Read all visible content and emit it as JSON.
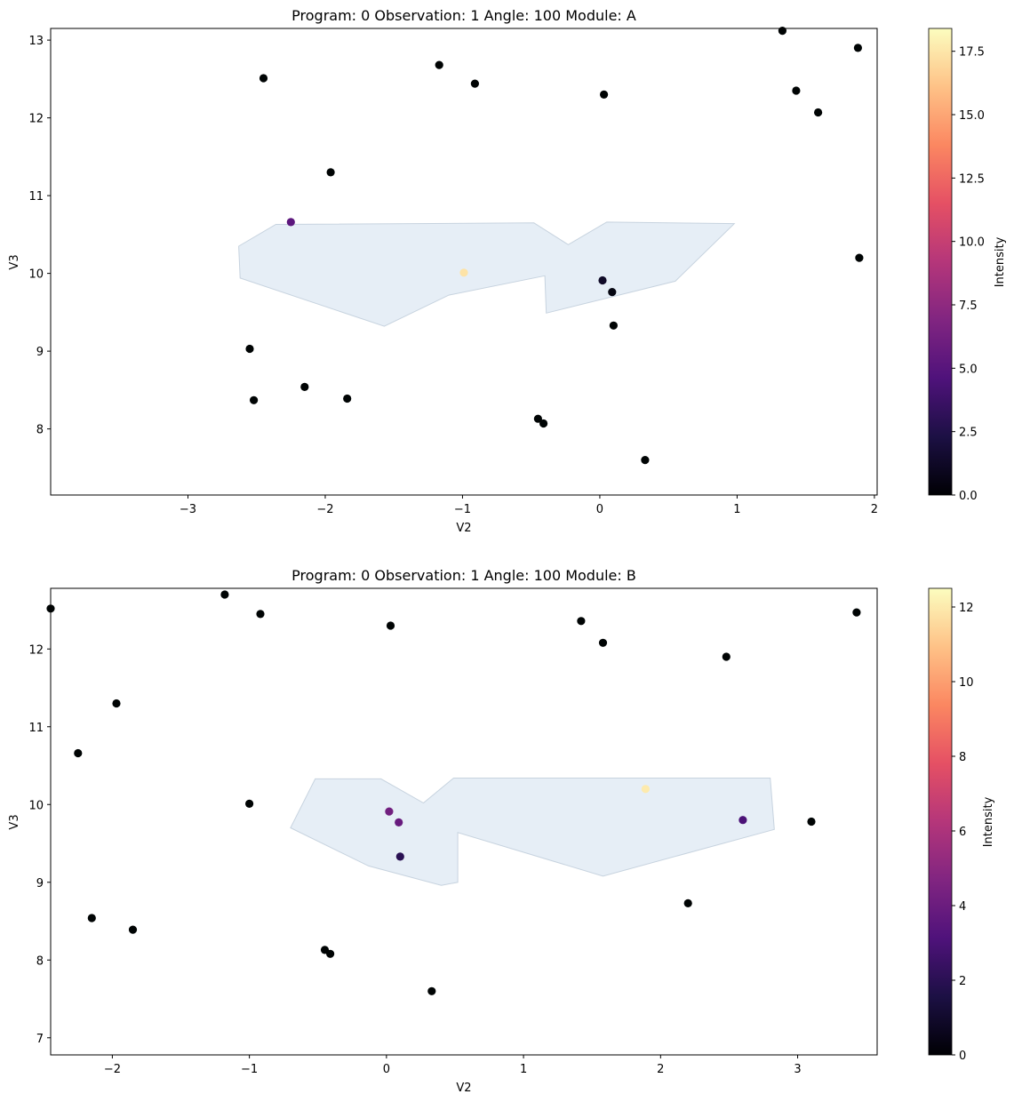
{
  "chart_data": [
    {
      "type": "scatter",
      "title": "Program: 0 Observation: 1 Angle: 100 Module: A",
      "xlabel": "V2",
      "ylabel": "V3",
      "xlim": [
        -4.0,
        2.02
      ],
      "ylim": [
        7.15,
        13.15
      ],
      "xticks": [
        -3,
        -2,
        -1,
        0,
        1,
        2
      ],
      "yticks": [
        8,
        9,
        10,
        11,
        12,
        13
      ],
      "grid": false,
      "colorbar": {
        "label": "Intensity",
        "colormap": "magma",
        "range": [
          0,
          18.4
        ],
        "ticks": [
          "0.0",
          "2.5",
          "5.0",
          "7.5",
          "10.0",
          "12.5",
          "15.0",
          "17.5"
        ]
      },
      "footprint_color": "#e6eef6",
      "footprint": [
        [
          -2.63,
          10.35
        ],
        [
          -2.36,
          10.63
        ],
        [
          -0.48,
          10.65
        ],
        [
          -0.23,
          10.37
        ],
        [
          0.05,
          10.66
        ],
        [
          0.98,
          10.64
        ],
        [
          0.55,
          9.9
        ],
        [
          -0.39,
          9.49
        ],
        [
          -0.4,
          9.97
        ],
        [
          -1.1,
          9.72
        ],
        [
          -1.57,
          9.32
        ],
        [
          -2.62,
          9.94
        ]
      ],
      "points": [
        {
          "x": 1.33,
          "y": 13.12,
          "value": 0
        },
        {
          "x": 1.88,
          "y": 12.9,
          "value": 0
        },
        {
          "x": -1.17,
          "y": 12.68,
          "value": 0
        },
        {
          "x": -2.45,
          "y": 12.51,
          "value": 0
        },
        {
          "x": -0.91,
          "y": 12.44,
          "value": 0
        },
        {
          "x": 1.43,
          "y": 12.35,
          "value": 0
        },
        {
          "x": 0.03,
          "y": 12.3,
          "value": 0
        },
        {
          "x": 1.59,
          "y": 12.07,
          "value": 0
        },
        {
          "x": -1.96,
          "y": 11.3,
          "value": 0
        },
        {
          "x": -2.25,
          "y": 10.66,
          "value": 5.2
        },
        {
          "x": 1.89,
          "y": 10.2,
          "value": 0
        },
        {
          "x": -0.99,
          "y": 10.01,
          "value": 17.4
        },
        {
          "x": 0.02,
          "y": 9.91,
          "value": 1.3
        },
        {
          "x": 0.09,
          "y": 9.76,
          "value": 0.5
        },
        {
          "x": 0.1,
          "y": 9.33,
          "value": 0
        },
        {
          "x": -2.55,
          "y": 9.03,
          "value": 0
        },
        {
          "x": -2.15,
          "y": 8.54,
          "value": 0
        },
        {
          "x": -1.84,
          "y": 8.39,
          "value": 0
        },
        {
          "x": -2.52,
          "y": 8.37,
          "value": 0
        },
        {
          "x": -0.45,
          "y": 8.13,
          "value": 0
        },
        {
          "x": -0.41,
          "y": 8.07,
          "value": 0
        },
        {
          "x": 0.33,
          "y": 7.6,
          "value": 0
        }
      ]
    },
    {
      "type": "scatter",
      "title": "Program: 0 Observation: 1 Angle: 100 Module: B",
      "xlabel": "V2",
      "ylabel": "V3",
      "xlim": [
        -2.45,
        3.58
      ],
      "ylim": [
        6.78,
        12.78
      ],
      "xticks": [
        -2,
        -1,
        0,
        1,
        2,
        3
      ],
      "yticks": [
        7,
        8,
        9,
        10,
        11,
        12
      ],
      "grid": false,
      "colorbar": {
        "label": "Intensity",
        "colormap": "magma",
        "range": [
          0,
          12.5
        ],
        "ticks": [
          "0",
          "2",
          "4",
          "6",
          "8",
          "10",
          "12"
        ]
      },
      "footprint_color": "#e6eef6",
      "footprint": [
        [
          -0.7,
          9.7
        ],
        [
          -0.52,
          10.33
        ],
        [
          -0.04,
          10.33
        ],
        [
          0.27,
          10.02
        ],
        [
          0.49,
          10.34
        ],
        [
          2.8,
          10.34
        ],
        [
          2.83,
          9.68
        ],
        [
          1.58,
          9.08
        ],
        [
          0.52,
          9.64
        ],
        [
          0.52,
          9.0
        ],
        [
          0.4,
          8.96
        ],
        [
          -0.13,
          9.21
        ]
      ],
      "points": [
        {
          "x": -2.45,
          "y": 12.52,
          "value": 0
        },
        {
          "x": -1.18,
          "y": 12.7,
          "value": 0
        },
        {
          "x": -0.92,
          "y": 12.45,
          "value": 0
        },
        {
          "x": 0.03,
          "y": 12.3,
          "value": 0
        },
        {
          "x": 1.42,
          "y": 12.36,
          "value": 0
        },
        {
          "x": 1.58,
          "y": 12.08,
          "value": 0
        },
        {
          "x": 2.48,
          "y": 11.9,
          "value": 0
        },
        {
          "x": 3.43,
          "y": 12.47,
          "value": 0
        },
        {
          "x": -1.97,
          "y": 11.3,
          "value": 0
        },
        {
          "x": -2.25,
          "y": 10.66,
          "value": 0
        },
        {
          "x": -1.0,
          "y": 10.01,
          "value": 0
        },
        {
          "x": 1.89,
          "y": 10.2,
          "value": 12.0
        },
        {
          "x": 0.02,
          "y": 9.91,
          "value": 4.2
        },
        {
          "x": 0.09,
          "y": 9.77,
          "value": 3.9
        },
        {
          "x": 0.1,
          "y": 9.33,
          "value": 2.0
        },
        {
          "x": 2.6,
          "y": 9.8,
          "value": 3.0
        },
        {
          "x": 3.1,
          "y": 9.78,
          "value": 0
        },
        {
          "x": 2.2,
          "y": 8.73,
          "value": 0
        },
        {
          "x": -2.15,
          "y": 8.54,
          "value": 0
        },
        {
          "x": -1.85,
          "y": 8.39,
          "value": 0
        },
        {
          "x": -0.45,
          "y": 8.13,
          "value": 0
        },
        {
          "x": -0.41,
          "y": 8.08,
          "value": 0
        },
        {
          "x": 0.33,
          "y": 7.6,
          "value": 0
        }
      ]
    }
  ]
}
